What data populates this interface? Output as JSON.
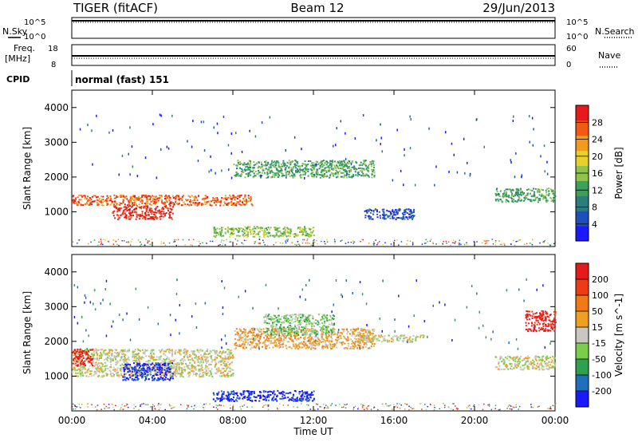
{
  "header": {
    "station": "TIGER (fitACF)",
    "beam": "Beam 12",
    "date": "29/Jun/2013"
  },
  "status_panels": {
    "nsky_label": "N.Sky",
    "nsearch_label": "N.Search",
    "freq_label_1": "Freq.",
    "freq_label_2": "[MHz]",
    "nave_label": "Nave",
    "cpid_label": "CPID",
    "cpid_text": "normal (fast) 151",
    "nsky_ticks": [
      "10^5",
      "10^0"
    ],
    "nsearch_ticks": [
      "10^5",
      "10^0"
    ],
    "freq_ticks": [
      "18",
      "8"
    ],
    "nave_ticks": [
      "60",
      "0"
    ]
  },
  "chart_data": [
    {
      "type": "heatmap",
      "name": "power",
      "ylabel": "Slant Range [km]",
      "ylim": [
        0,
        4500
      ],
      "yticks": [
        "4000",
        "3000",
        "2000",
        "1000"
      ],
      "x_ticks": [
        "00:00",
        "04:00",
        "08:00",
        "12:00",
        "16:00",
        "20:00",
        "00:00"
      ],
      "colorbar_label": "Power [dB]",
      "colorbar_ticks": [
        "28",
        "24",
        "20",
        "16",
        "12",
        "8",
        "4"
      ],
      "colors": [
        "#1a1aff",
        "#1f4fbf",
        "#2e7d7d",
        "#3aa05a",
        "#8fc44a",
        "#e8d02a",
        "#f29a1a",
        "#f25a14",
        "#e61a1a"
      ],
      "bands": [
        {
          "start": "00:00",
          "end": "09:00",
          "r0": 1200,
          "r1": 1500,
          "level": 7
        },
        {
          "start": "02:00",
          "end": "05:00",
          "r0": 800,
          "r1": 1200,
          "level": 8
        },
        {
          "start": "08:00",
          "end": "15:00",
          "r0": 2000,
          "r1": 2500,
          "level": 3
        },
        {
          "start": "14:30",
          "end": "17:00",
          "r0": 800,
          "r1": 1100,
          "level": 1
        },
        {
          "start": "21:00",
          "end": "24:00",
          "r0": 1300,
          "r1": 1700,
          "level": 3
        },
        {
          "start": "07:00",
          "end": "12:00",
          "r0": 300,
          "r1": 600,
          "level": 4
        }
      ]
    },
    {
      "type": "heatmap",
      "name": "velocity",
      "ylabel": "Slant Range [km]",
      "ylim": [
        0,
        4500
      ],
      "yticks": [
        "4000",
        "3000",
        "2000",
        "1000"
      ],
      "x_ticks": [
        "00:00",
        "04:00",
        "08:00",
        "12:00",
        "16:00",
        "20:00",
        "00:00"
      ],
      "xlabel": "Time UT",
      "colorbar_label": "Velocity [m s^-1]",
      "colorbar_ticks": [
        "200",
        "100",
        "50",
        "15",
        "-15",
        "-50",
        "-100",
        "-200"
      ],
      "colors": [
        "#1a1aff",
        "#1f6fbf",
        "#2fa050",
        "#7ccd4a",
        "#c8c8c0",
        "#f0a020",
        "#f07a14",
        "#f03a14",
        "#e61a1a"
      ],
      "bands": [
        {
          "start": "00:00",
          "end": "08:00",
          "r0": 1000,
          "r1": 1800,
          "level": 4
        },
        {
          "start": "00:00",
          "end": "01:00",
          "r0": 1300,
          "r1": 1800,
          "level": 8
        },
        {
          "start": "02:30",
          "end": "05:00",
          "r0": 900,
          "r1": 1400,
          "level": 0
        },
        {
          "start": "08:00",
          "end": "15:00",
          "r0": 1800,
          "r1": 2400,
          "level": 5
        },
        {
          "start": "09:30",
          "end": "13:00",
          "r0": 2200,
          "r1": 2800,
          "level": 3
        },
        {
          "start": "14:00",
          "end": "17:30",
          "r0": 2000,
          "r1": 2200,
          "level": 4
        },
        {
          "start": "21:00",
          "end": "24:00",
          "r0": 1200,
          "r1": 1600,
          "level": 4
        },
        {
          "start": "22:30",
          "end": "24:00",
          "r0": 2300,
          "r1": 2900,
          "level": 8
        },
        {
          "start": "07:00",
          "end": "12:00",
          "r0": 300,
          "r1": 600,
          "level": 0
        }
      ]
    }
  ]
}
